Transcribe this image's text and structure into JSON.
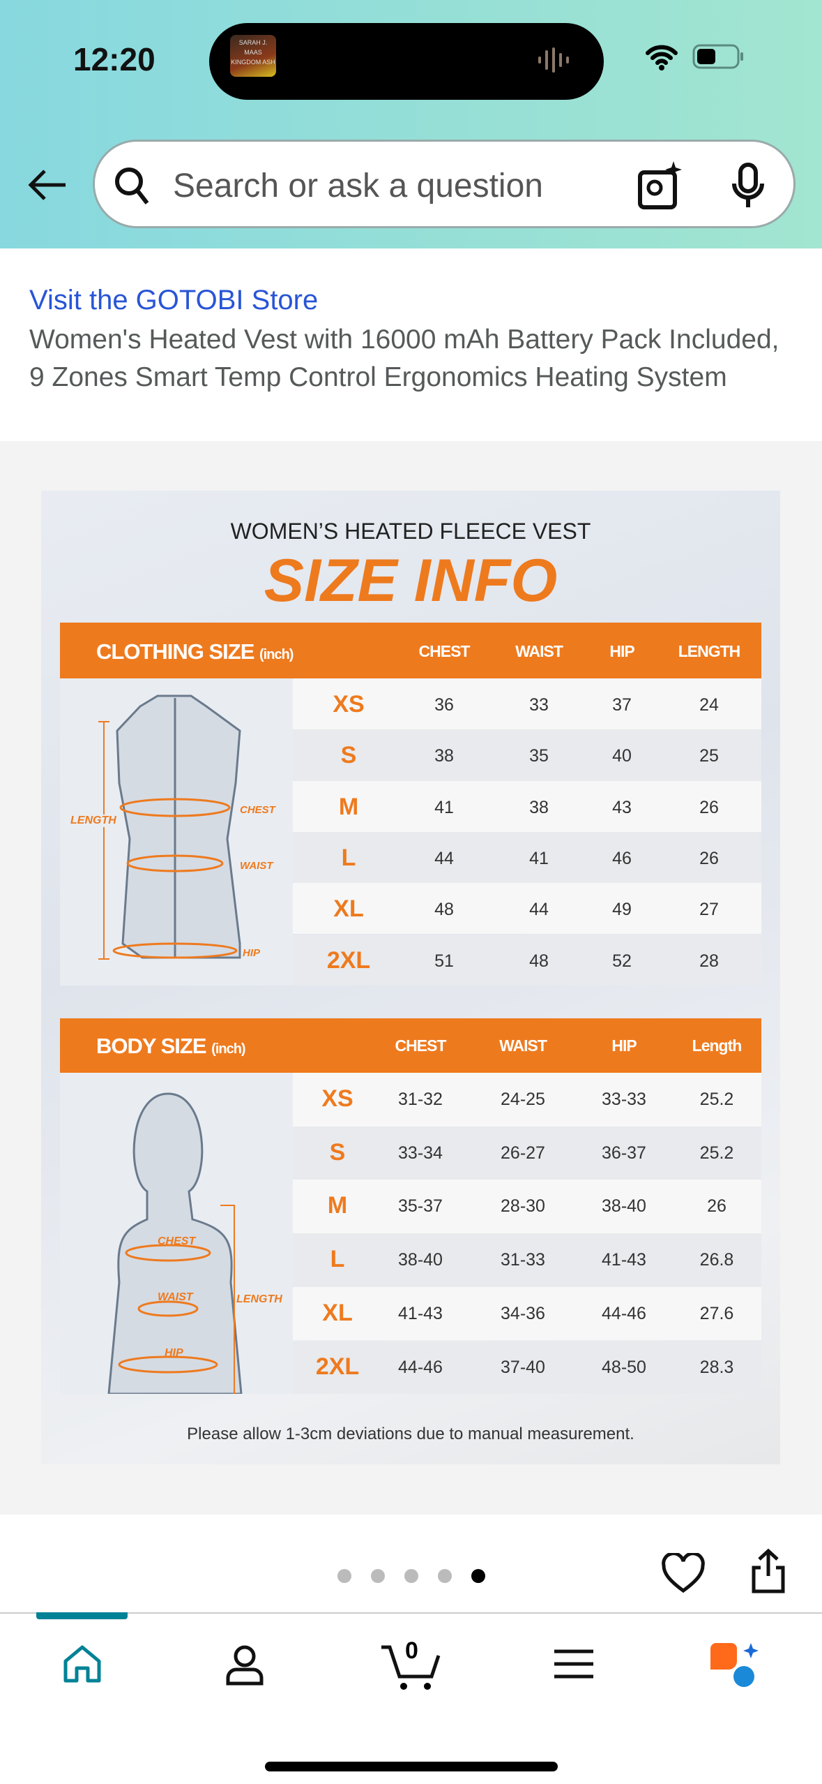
{
  "status": {
    "time": "12:20",
    "now_playing_cover": "SARAH J. MAAS KINGDOM ASH"
  },
  "search": {
    "placeholder": "Search or ask a question"
  },
  "product": {
    "store_link": "Visit the GOTOBI Store",
    "title": "Women's Heated Vest with 16000 mAh Battery Pack Included, 9 Zones Smart Temp Control Ergonomics Heating System"
  },
  "size_chart": {
    "subtitle": "WOMEN’S HEATED FLEECE VEST",
    "title": "SIZE INFO",
    "clothing": {
      "heading": "CLOTHING SIZE",
      "unit": "(inch)",
      "columns": [
        "CHEST",
        "WAIST",
        "HIP",
        "LENGTH"
      ],
      "figure_labels": {
        "length": "LENGTH",
        "chest": "CHEST",
        "waist": "WAIST",
        "hip": "HIP"
      },
      "rows": [
        [
          "XS",
          "36",
          "33",
          "37",
          "24"
        ],
        [
          "S",
          "38",
          "35",
          "40",
          "25"
        ],
        [
          "M",
          "41",
          "38",
          "43",
          "26"
        ],
        [
          "L",
          "44",
          "41",
          "46",
          "26"
        ],
        [
          "XL",
          "48",
          "44",
          "49",
          "27"
        ],
        [
          "2XL",
          "51",
          "48",
          "52",
          "28"
        ]
      ]
    },
    "body": {
      "heading": "BODY SIZE",
      "unit": "(inch)",
      "columns": [
        "CHEST",
        "WAIST",
        "HIP",
        "Length"
      ],
      "figure_labels": {
        "length": "LENGTH",
        "chest": "CHEST",
        "waist": "WAIST",
        "hip": "HIP"
      },
      "rows": [
        [
          "XS",
          "31-32",
          "24-25",
          "33-33",
          "25.2"
        ],
        [
          "S",
          "33-34",
          "26-27",
          "36-37",
          "25.2"
        ],
        [
          "M",
          "35-37",
          "28-30",
          "38-40",
          "26"
        ],
        [
          "L",
          "38-40",
          "31-33",
          "41-43",
          "26.8"
        ],
        [
          "XL",
          "41-43",
          "34-36",
          "44-46",
          "27.6"
        ],
        [
          "2XL",
          "44-46",
          "37-40",
          "48-50",
          "28.3"
        ]
      ]
    },
    "note": "Please allow 1-3cm deviations due to manual measurement.",
    "accent": "#ee7a1e"
  },
  "carousel": {
    "total": 5,
    "active": 4
  },
  "cart": {
    "count": "0"
  },
  "nav": {
    "items": [
      "home",
      "account",
      "cart",
      "menu",
      "rufus"
    ],
    "active": "home",
    "active_color": "#008296"
  }
}
